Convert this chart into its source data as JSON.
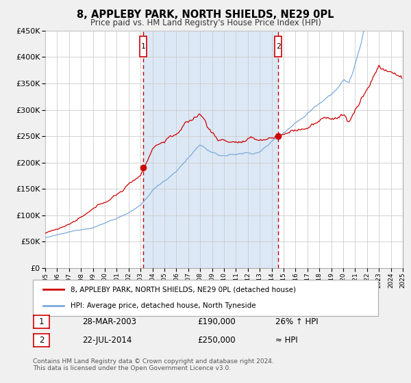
{
  "title_line1": "8, APPLEBY PARK, NORTH SHIELDS, NE29 0PL",
  "title_line2": "Price paid vs. HM Land Registry's House Price Index (HPI)",
  "bg_color": "#f0f0f0",
  "plot_bg_color": "#ffffff",
  "shaded_region_color": "#dce8f5",
  "red_line_color": "#cc0000",
  "blue_line_color": "#7aaadd",
  "grid_color": "#cccccc",
  "sale1_date_num": 2003.23,
  "sale1_price": 190000,
  "sale1_label": "1",
  "sale1_date_str": "28-MAR-2003",
  "sale1_hpi_diff": "26% ↑ HPI",
  "sale2_date_num": 2014.55,
  "sale2_price": 250000,
  "sale2_label": "2",
  "sale2_date_str": "22-JUL-2014",
  "sale2_hpi_diff": "≈ HPI",
  "legend_property": "8, APPLEBY PARK, NORTH SHIELDS, NE29 0PL (detached house)",
  "legend_hpi": "HPI: Average price, detached house, North Tyneside",
  "footnote1": "Contains HM Land Registry data © Crown copyright and database right 2024.",
  "footnote2": "This data is licensed under the Open Government Licence v3.0.",
  "xmin": 1995,
  "xmax": 2025,
  "ymin": 0,
  "ymax": 450000
}
